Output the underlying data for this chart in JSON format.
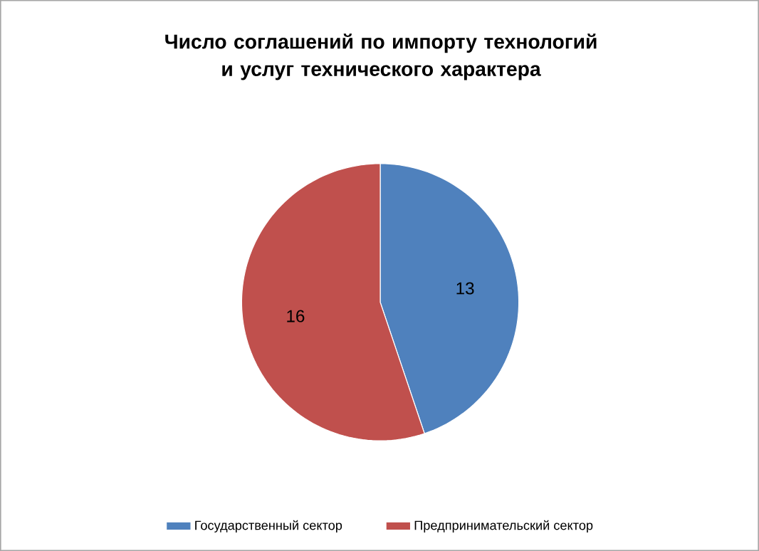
{
  "chart_data": {
    "type": "pie",
    "title": "Число соглашений по импорту технологий и услуг технического характера",
    "categories": [
      "Государственный сектор",
      "Предпринимательский сектор"
    ],
    "values": [
      13,
      16
    ],
    "colors": [
      "#4f81bd",
      "#c0504d"
    ],
    "data_labels": true,
    "legend": "bottom"
  }
}
